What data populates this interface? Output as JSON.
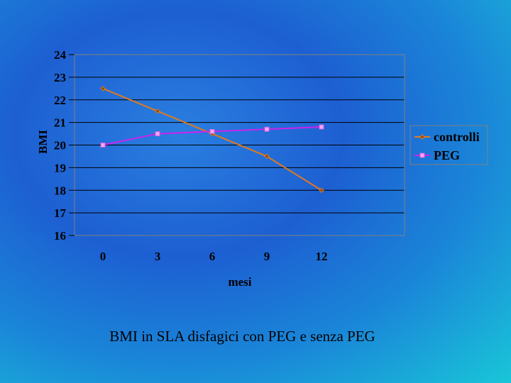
{
  "caption": "BMI in SLA disfagici con PEG e senza PEG",
  "chart_data": {
    "type": "line",
    "x": [
      0,
      3,
      6,
      9,
      12
    ],
    "xlabel": "mesi",
    "ylabel": "BMI",
    "ylim": [
      16,
      24
    ],
    "yticks": [
      16,
      17,
      18,
      19,
      20,
      21,
      22,
      23,
      24
    ],
    "grid": true,
    "legend": "right",
    "series": [
      {
        "name": "controlli",
        "values": [
          22.5,
          21.5,
          20.5,
          19.5,
          18.0
        ],
        "color": "#e07a1e",
        "marker": "diamond"
      },
      {
        "name": "PEG",
        "values": [
          20.0,
          20.5,
          20.6,
          20.7,
          20.8
        ],
        "color": "#cc22ee",
        "marker": "square"
      }
    ]
  }
}
